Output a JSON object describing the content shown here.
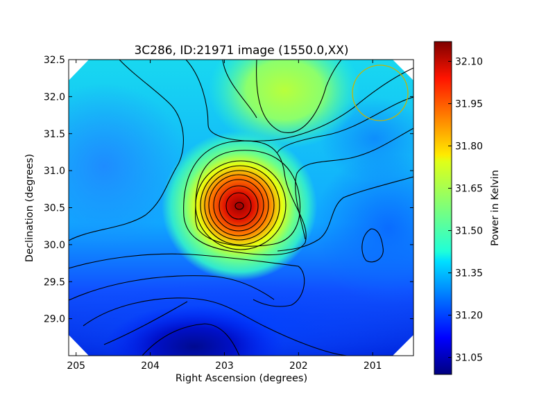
{
  "chart_data": {
    "type": "heatmap",
    "title": "3C286, ID:21971 image (1550.0,XX)",
    "xlabel": "Right Ascension (degrees)",
    "ylabel": "Declination (degrees)",
    "colorbar_label": "Power in Kelvin",
    "xlim": [
      205.1,
      200.45
    ],
    "ylim": [
      28.5,
      32.5
    ],
    "x_ticks": [
      205,
      204,
      203,
      202,
      201
    ],
    "y_ticks": [
      29.0,
      29.5,
      30.0,
      30.5,
      31.0,
      31.5,
      32.0,
      32.5
    ],
    "colorbar_range": [
      30.99,
      32.17
    ],
    "colorbar_ticks": [
      31.05,
      31.2,
      31.35,
      31.5,
      31.65,
      31.8,
      31.95,
      32.1
    ],
    "colormap": "jet",
    "grid": false,
    "peak": {
      "ra": 202.78,
      "dec": 30.52,
      "value": 32.1
    },
    "features": [
      {
        "name": "secondary-max-north",
        "ra": 202.2,
        "dec": 32.15,
        "value": 31.6
      },
      {
        "name": "local-min-east",
        "ra": 200.9,
        "dec": 29.98,
        "value": 31.18
      },
      {
        "name": "minimum-south",
        "ra": 203.4,
        "dec": 28.58,
        "value": 31.0
      }
    ],
    "beam_marker": {
      "ra": 200.88,
      "dec": 32.05,
      "color": "#c8b400"
    }
  }
}
